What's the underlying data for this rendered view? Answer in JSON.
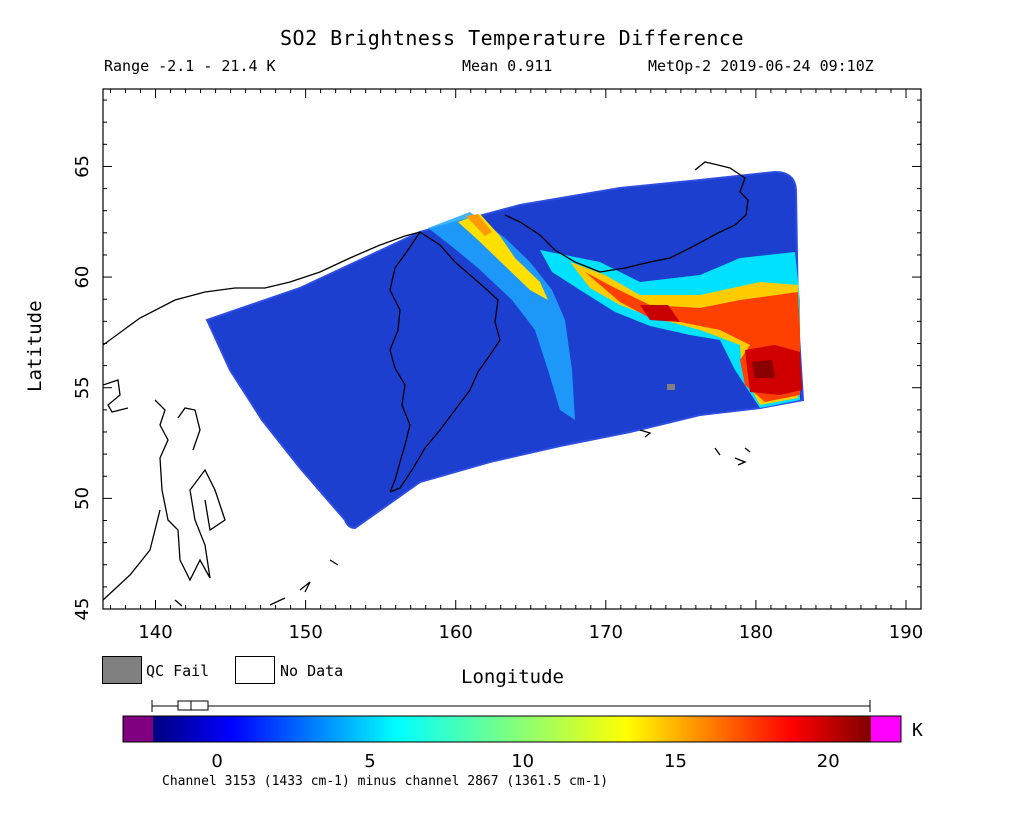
{
  "header": {
    "title": "SO2 Brightness Temperature Difference",
    "range": "Range -2.1 - 21.4 K",
    "mean": "Mean 0.911",
    "satellite_time": "MetOp-2 2019-06-24 09:10Z"
  },
  "map": {
    "xlabel": "Longitude",
    "ylabel": "Latitude",
    "lon_range": [
      136.5,
      191
    ],
    "lat_range": [
      45,
      68.5
    ],
    "x_ticks": [
      "140",
      "150",
      "160",
      "170",
      "180",
      "190"
    ],
    "y_ticks": [
      "45",
      "50",
      "55",
      "60",
      "65"
    ]
  },
  "legend": {
    "qc_fail": "QC Fail",
    "no_data": "No Data",
    "qc_color": "#808080"
  },
  "colorbar": {
    "unit": "K",
    "range": [
      -2.1,
      21.4
    ],
    "ticks": [
      "0",
      "5",
      "10",
      "15",
      "20"
    ],
    "under_color": "#800080",
    "over_color": "#ff00ff",
    "note": "Channel 3153 (1433 cm-1) minus channel 2867 (1361.5 cm-1)"
  }
}
